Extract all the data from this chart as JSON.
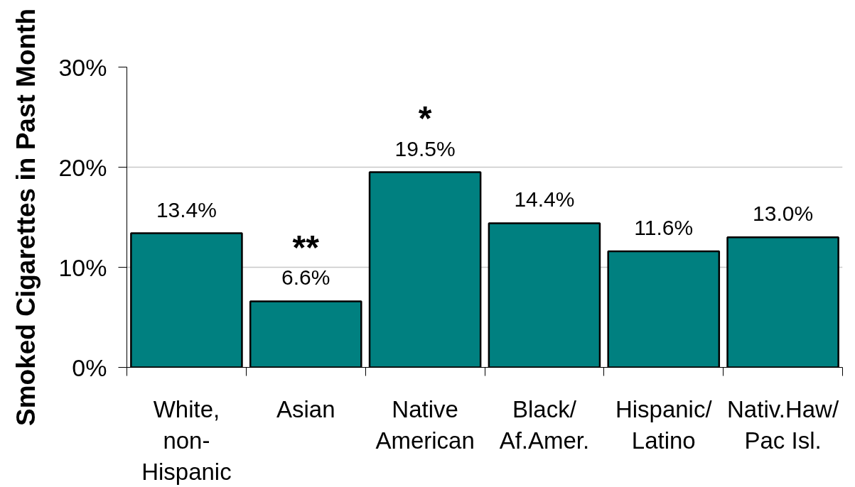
{
  "chart_data": {
    "type": "bar",
    "ylabel": "Smoked Cigarettes in Past Month",
    "categories": [
      "White,\nnon-\nHispanic",
      "Asian",
      "Native\nAmerican",
      "Black/\nAf.Amer.",
      "Hispanic/\nLatino",
      "Nativ.Haw/\nPac Isl."
    ],
    "values": [
      13.4,
      6.6,
      19.5,
      14.4,
      11.6,
      13.0
    ],
    "value_labels": [
      "13.4%",
      "6.6%",
      "19.5%",
      "14.4%",
      "11.6%",
      "13.0%"
    ],
    "color": "#008080",
    "ylim": [
      0,
      30
    ],
    "yticks": [
      {
        "value": 0,
        "label": "0%"
      },
      {
        "value": 10,
        "label": "10%"
      },
      {
        "value": 20,
        "label": "20%"
      },
      {
        "value": 30,
        "label": "30%"
      }
    ],
    "grid": "y",
    "annotations": [
      {
        "text": "**",
        "x": "Asian",
        "y": 6.6
      },
      {
        "text": "*",
        "x": "Native\nAmerican",
        "y": 19.5
      }
    ]
  }
}
